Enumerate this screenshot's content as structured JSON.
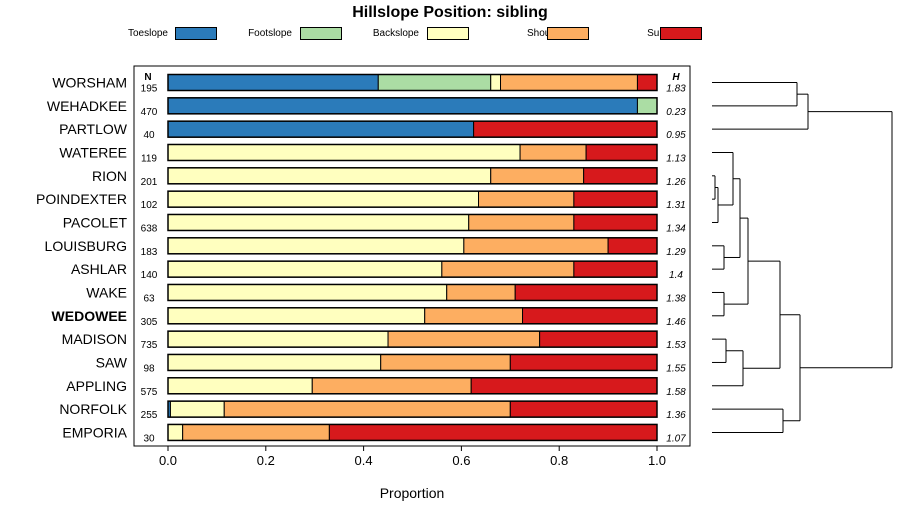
{
  "title": "Hillslope Position: sibling",
  "legend": [
    {
      "name": "Toeslope",
      "color": "#2b7bba"
    },
    {
      "name": "Footslope",
      "color": "#abdda4"
    },
    {
      "name": "Backslope",
      "color": "#ffffbf"
    },
    {
      "name": "Shoulder",
      "color": "#fdae61"
    },
    {
      "name": "Summit",
      "color": "#d7191c"
    }
  ],
  "n_header": "N",
  "h_header": "H",
  "highlight_series": "WEDOWEE",
  "chart_data": {
    "type": "bar",
    "orientation": "horizontal",
    "stacked": true,
    "title": "Hillslope Position: sibling",
    "xlabel": "Proportion",
    "xlim": [
      0,
      1
    ],
    "xticks": [
      "0.0",
      "0.2",
      "0.4",
      "0.6",
      "0.8",
      "1.0"
    ],
    "categories_order": [
      "Toeslope",
      "Footslope",
      "Backslope",
      "Shoulder",
      "Summit"
    ],
    "rows": [
      {
        "name": "WORSHAM",
        "n": "195",
        "h": "1.83",
        "values": [
          0.43,
          0.23,
          0.02,
          0.28,
          0.04
        ]
      },
      {
        "name": "WEHADKEE",
        "n": "470",
        "h": "0.23",
        "values": [
          0.96,
          0.04,
          0.0,
          0.0,
          0.0
        ]
      },
      {
        "name": "PARTLOW",
        "n": "40",
        "h": "0.95",
        "values": [
          0.625,
          0.0,
          0.0,
          0.0,
          0.375
        ]
      },
      {
        "name": "WATEREE",
        "n": "119",
        "h": "1.13",
        "values": [
          0.0,
          0.0,
          0.72,
          0.135,
          0.145
        ]
      },
      {
        "name": "RION",
        "n": "201",
        "h": "1.26",
        "values": [
          0.0,
          0.0,
          0.66,
          0.19,
          0.15
        ]
      },
      {
        "name": "POINDEXTER",
        "n": "102",
        "h": "1.31",
        "values": [
          0.0,
          0.0,
          0.635,
          0.195,
          0.17
        ]
      },
      {
        "name": "PACOLET",
        "n": "638",
        "h": "1.34",
        "values": [
          0.0,
          0.0,
          0.615,
          0.215,
          0.17
        ]
      },
      {
        "name": "LOUISBURG",
        "n": "183",
        "h": "1.29",
        "values": [
          0.0,
          0.0,
          0.605,
          0.295,
          0.1
        ]
      },
      {
        "name": "ASHLAR",
        "n": "140",
        "h": "1.4",
        "values": [
          0.0,
          0.0,
          0.56,
          0.27,
          0.17
        ]
      },
      {
        "name": "WAKE",
        "n": "63",
        "h": "1.38",
        "values": [
          0.0,
          0.0,
          0.57,
          0.14,
          0.29
        ]
      },
      {
        "name": "WEDOWEE",
        "n": "305",
        "h": "1.46",
        "values": [
          0.0,
          0.0,
          0.525,
          0.2,
          0.275
        ]
      },
      {
        "name": "MADISON",
        "n": "735",
        "h": "1.53",
        "values": [
          0.0,
          0.0,
          0.45,
          0.31,
          0.24
        ]
      },
      {
        "name": "SAW",
        "n": "98",
        "h": "1.55",
        "values": [
          0.0,
          0.0,
          0.435,
          0.265,
          0.3
        ]
      },
      {
        "name": "APPLING",
        "n": "575",
        "h": "1.58",
        "values": [
          0.0,
          0.0,
          0.295,
          0.325,
          0.38
        ]
      },
      {
        "name": "NORFOLK",
        "n": "255",
        "h": "1.36",
        "values": [
          0.005,
          0.0,
          0.11,
          0.585,
          0.3
        ]
      },
      {
        "name": "EMPORIA",
        "n": "30",
        "h": "1.07",
        "values": [
          0.0,
          0.0,
          0.03,
          0.3,
          0.67
        ]
      }
    ]
  }
}
